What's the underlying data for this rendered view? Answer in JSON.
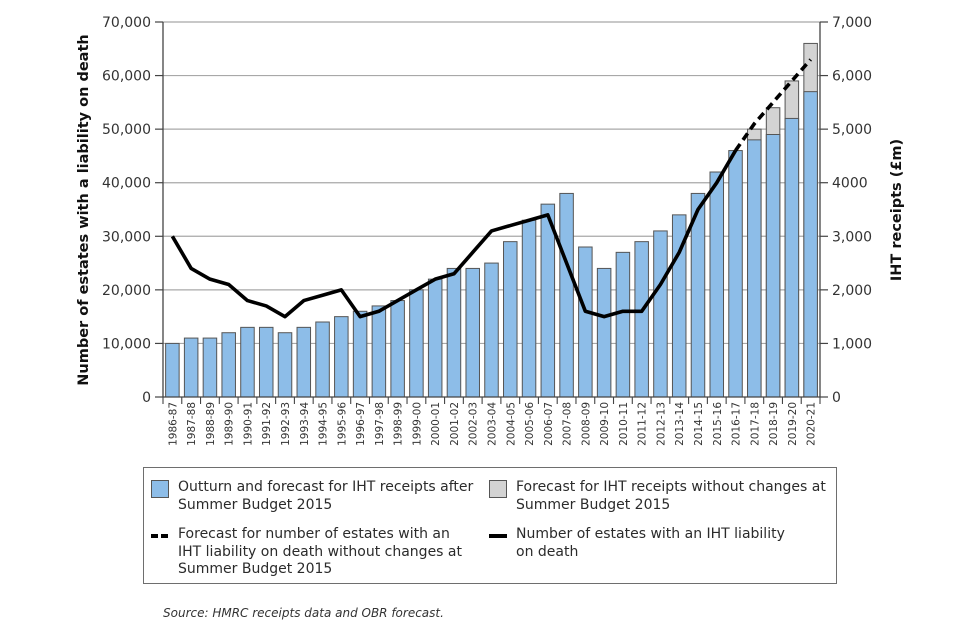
{
  "chart_data": {
    "type": "bar",
    "title": "",
    "categories": [
      "1986-87",
      "1987-88",
      "1988-89",
      "1989-90",
      "1990-91",
      "1991-92",
      "1992-93",
      "1993-94",
      "1994-95",
      "1995-96",
      "1996-97",
      "1997-98",
      "1998-99",
      "1999-00",
      "2000-01",
      "2001-02",
      "2002-03",
      "2003-04",
      "2004-05",
      "2005-06",
      "2006-07",
      "2007-08",
      "2008-09",
      "2009-10",
      "2010-11",
      "2011-12",
      "2012-13",
      "2013-14",
      "2014-15",
      "2015-16",
      "2016-17",
      "2017-18",
      "2018-19",
      "2019-20",
      "2020-21"
    ],
    "left_axis": {
      "label": "Number of estates with a liability on death",
      "range": [
        0,
        70000
      ],
      "ticks": [
        "0",
        "10,000",
        "20,000",
        "30,000",
        "40,000",
        "50,000",
        "60,000",
        "70,000"
      ]
    },
    "right_axis": {
      "label": "IHT receipts (£m)",
      "range": [
        0,
        7000
      ],
      "ticks": [
        "0",
        "1,000",
        "2,000",
        "3,000",
        "4000",
        "5,000",
        "6,000",
        "7,000"
      ]
    },
    "grid": true,
    "series": [
      {
        "name": "Outturn and forecast for IHT receipts after Summer Budget 2015",
        "kind": "bar",
        "axis": "right",
        "color": "#8dbde8",
        "values": [
          1000,
          1100,
          1100,
          1200,
          1300,
          1300,
          1200,
          1300,
          1400,
          1500,
          1600,
          1700,
          1800,
          2000,
          2200,
          2400,
          2400,
          2500,
          2900,
          3300,
          3600,
          3800,
          2800,
          2400,
          2700,
          2900,
          3100,
          3400,
          3800,
          4200,
          4600,
          4800,
          4900,
          5200,
          5700
        ]
      },
      {
        "name": "Forecast for IHT receipts without changes at Summer Budget 2015",
        "kind": "stacked-bar-top",
        "axis": "right",
        "color": "#d3d3d3",
        "values": [
          null,
          null,
          null,
          null,
          null,
          null,
          null,
          null,
          null,
          null,
          null,
          null,
          null,
          null,
          null,
          null,
          null,
          null,
          null,
          null,
          null,
          null,
          null,
          null,
          null,
          null,
          null,
          null,
          null,
          null,
          null,
          5000,
          5400,
          5900,
          6600
        ]
      },
      {
        "name": "Number of estates with an IHT liability on death",
        "kind": "line",
        "axis": "left",
        "style": "solid",
        "color": "#000000",
        "values": [
          30000,
          24000,
          22000,
          21000,
          18000,
          17000,
          15000,
          18000,
          19000,
          20000,
          15000,
          16000,
          18000,
          20000,
          22000,
          23000,
          27000,
          31000,
          32000,
          33000,
          34000,
          null,
          16000,
          15000,
          16000,
          16000,
          21000,
          27000,
          35000,
          40000,
          46000,
          null,
          null,
          null,
          null
        ]
      },
      {
        "name": "Forecast for number of estates with an IHT liability on death without changes at Summer Budget 2015",
        "kind": "line",
        "axis": "left",
        "style": "dashed",
        "color": "#000000",
        "values": [
          null,
          null,
          null,
          null,
          null,
          null,
          null,
          null,
          null,
          null,
          null,
          null,
          null,
          null,
          null,
          null,
          null,
          null,
          null,
          null,
          null,
          null,
          null,
          null,
          null,
          null,
          null,
          null,
          null,
          null,
          46000,
          51000,
          55000,
          59000,
          63000
        ]
      }
    ],
    "line_interp_note": "solid line passes through 2007-08 between 34,000 and 16,000",
    "legend_position": "bottom"
  },
  "legend": {
    "items": [
      {
        "label_line1": "Outturn and forecast for IHT receipts after",
        "label_line2": "Summer Budget 2015"
      },
      {
        "label_line1": "Forecast for IHT receipts without changes at",
        "label_line2": "Summer Budget 2015"
      },
      {
        "label_line1": "Forecast for number of estates with an",
        "label_line2": "IHT liability on death without changes at",
        "label_line3": "Summer Budget 2015"
      },
      {
        "label_line1": "Number of estates with an IHT liability",
        "label_line2": "on death"
      }
    ]
  },
  "source": "Source: HMRC receipts data and OBR forecast."
}
